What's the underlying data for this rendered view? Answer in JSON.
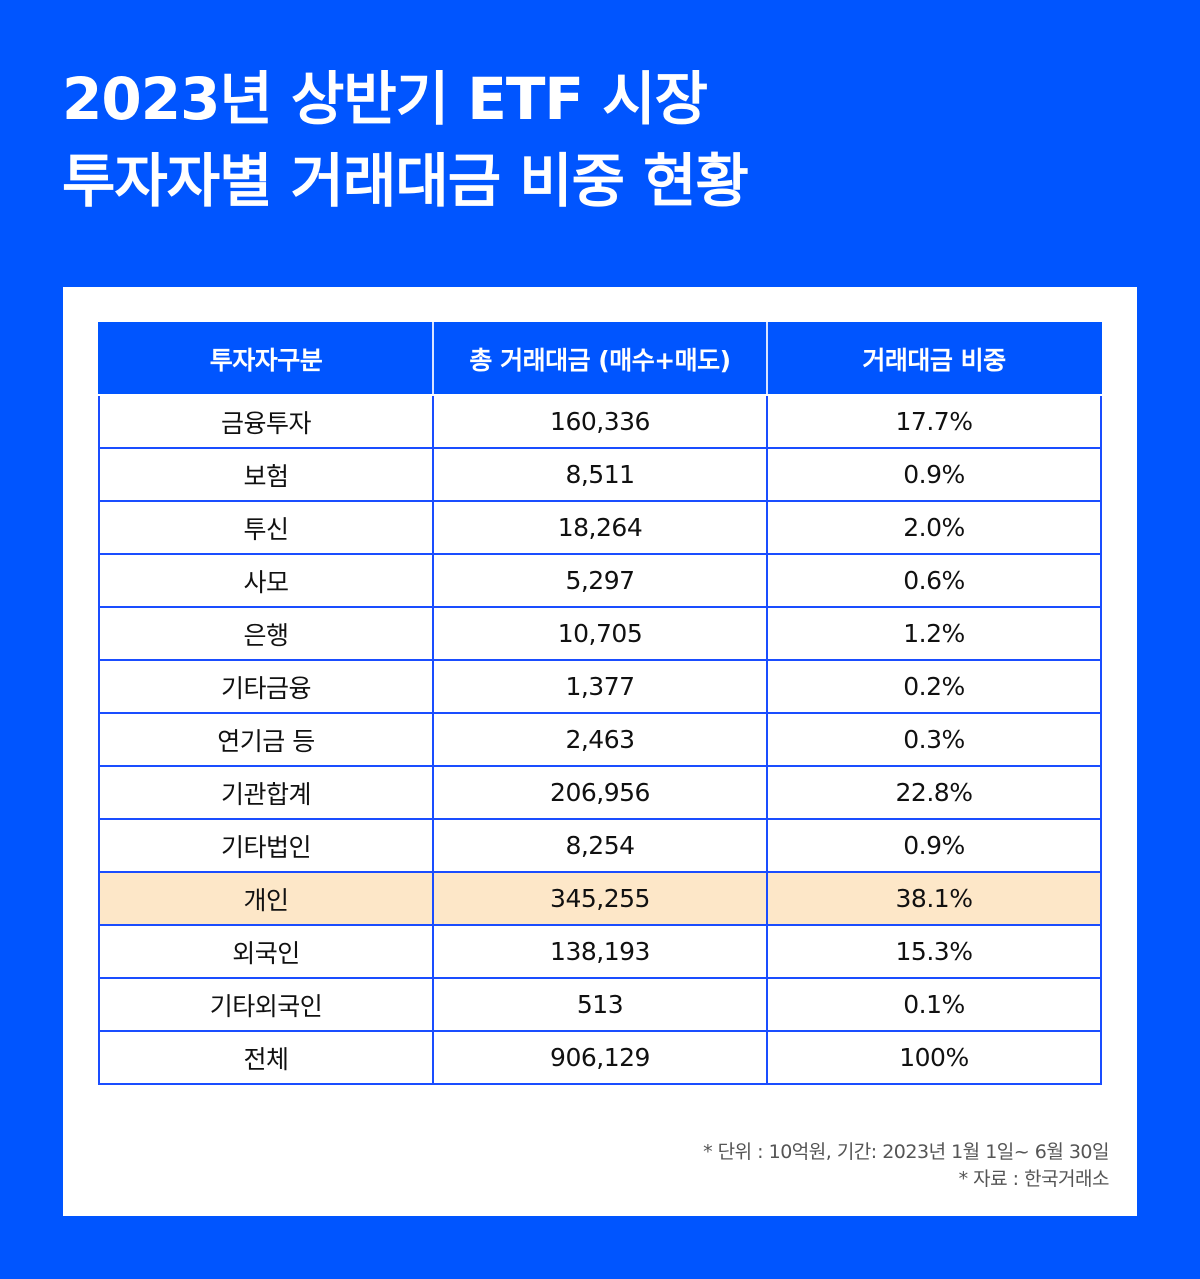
{
  "title": {
    "line1": "2023년 상반기 ETF 시장",
    "line2": "투자자별 거래대금 비중 현황"
  },
  "table": {
    "headers": [
      "투자자구분",
      "총 거래대금 (매수+매도)",
      "거래대금 비중"
    ],
    "rows": [
      [
        "금융투자",
        "160,336",
        "17.7%"
      ],
      [
        "보험",
        "8,511",
        "0.9%"
      ],
      [
        "투신",
        "18,264",
        "2.0%"
      ],
      [
        "사모",
        "5,297",
        "0.6%"
      ],
      [
        "은행",
        "10,705",
        "1.2%"
      ],
      [
        "기타금융",
        "1,377",
        "0.2%"
      ],
      [
        "연기금 등",
        "2,463",
        "0.3%"
      ],
      [
        "기관합계",
        "206,956",
        "22.8%"
      ],
      [
        "기타법인",
        "8,254",
        "0.9%"
      ],
      [
        "개인",
        "345,255",
        "38.1%"
      ],
      [
        "외국인",
        "138,193",
        "15.3%"
      ],
      [
        "기타외국인",
        "513",
        "0.1%"
      ],
      [
        "전체",
        "906,129",
        "100%"
      ]
    ],
    "highlight_row": 9
  },
  "notes": [
    "* 단위 : 10억원, 기간: 2023년 1월 1일~ 6월 30일",
    "* 자료 : 한국거래소"
  ],
  "colors": {
    "brand": "#0055ff",
    "highlight": "#fde7c8"
  }
}
